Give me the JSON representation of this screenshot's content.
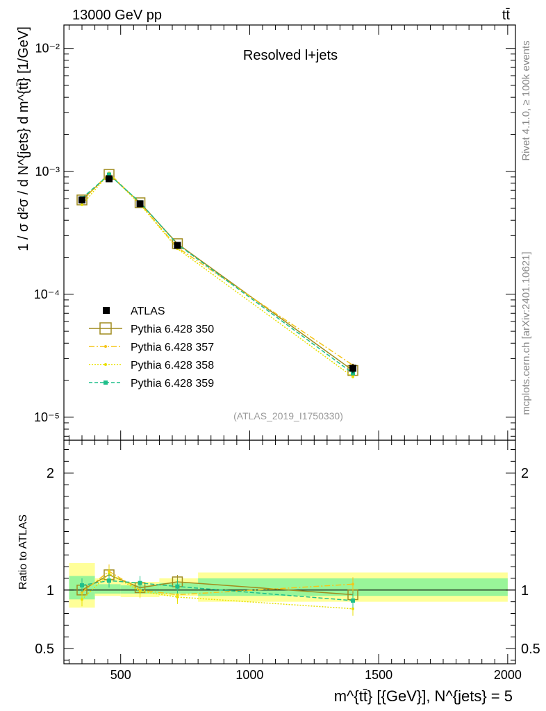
{
  "header": {
    "left": "13000 GeV pp",
    "right": "tt̄",
    "side_top": "Rivet 4.1.0, ≥ 100k events",
    "side_bottom": "mcplots.cern.ch [arXiv:2401.10621]"
  },
  "chart_data": [
    {
      "type": "line",
      "title": "Resolved l+jets",
      "analysis_label": "(ATLAS_2019_I1750330)",
      "ylabel": "1 / σ d²σ / d N^{jets} d m^{tt̄} [1/GeV]",
      "yscale": "log",
      "xlim": [
        280,
        2030
      ],
      "ylim": [
        6.5e-06,
        0.0155
      ],
      "y_tick_labels": [
        "10⁻⁵",
        "10⁻⁴",
        "10⁻³",
        "10⁻²"
      ],
      "y_tick_values": [
        1e-05,
        0.0001,
        0.001,
        0.01
      ],
      "legend_position": "lower-left",
      "data": {
        "name": "ATLAS",
        "x": [
          350,
          455,
          575,
          720,
          1400
        ],
        "y": [
          0.000585,
          0.00087,
          0.000545,
          0.00025,
          2.5e-05
        ],
        "yerr": [
          3e-05,
          4e-05,
          3e-05,
          1.5e-05,
          2.2e-06
        ]
      },
      "series": [
        {
          "name": "Pythia 6.428 350",
          "color": "#a08c1e",
          "style": "solid",
          "marker": "open-square",
          "x": [
            350,
            455,
            575,
            720,
            1400
          ],
          "y": [
            0.000585,
            0.000945,
            0.000555,
            0.000258,
            2.4e-05
          ]
        },
        {
          "name": "Pythia 6.428 357",
          "color": "#f5c518",
          "style": "dashdot",
          "marker": "dot",
          "x": [
            350,
            455,
            575,
            720,
            1400
          ],
          "y": [
            0.00057,
            0.00097,
            0.000545,
            0.00024,
            2.65e-05
          ]
        },
        {
          "name": "Pythia 6.428 358",
          "color": "#e8e000",
          "style": "dotted",
          "marker": "dot",
          "x": [
            350,
            455,
            575,
            720,
            1400
          ],
          "y": [
            0.000535,
            0.000955,
            0.00054,
            0.000235,
            2.13e-05
          ]
        },
        {
          "name": "Pythia 6.428 359",
          "color": "#1fbf8a",
          "style": "dashed",
          "marker": "filled-square",
          "x": [
            350,
            455,
            575,
            720,
            1400
          ],
          "y": [
            0.000605,
            0.00094,
            0.00056,
            0.000255,
            2.28e-05
          ]
        }
      ]
    },
    {
      "type": "line",
      "title": "",
      "ylabel": "Ratio to ATLAS",
      "xlabel": "m^{tt̄} [{GeV}], N^{jets} = 5",
      "xlim": [
        280,
        2030
      ],
      "ylim": [
        0.37,
        2.28
      ],
      "x_ticks": [
        500,
        1000,
        1500,
        2000
      ],
      "x_tick_labels": [
        "500",
        "1000",
        "1500",
        "2000"
      ],
      "y_ticks": [
        0.5,
        1,
        2
      ],
      "y_tick_labels": [
        "0.5",
        "1",
        "2"
      ],
      "bands": [
        {
          "x0": 300,
          "x1": 400,
          "yellow": [
            0.85,
            1.23
          ],
          "green": [
            0.92,
            1.12
          ]
        },
        {
          "x0": 400,
          "x1": 500,
          "yellow": [
            0.95,
            1.1
          ],
          "green": [
            0.97,
            1.05
          ]
        },
        {
          "x0": 500,
          "x1": 650,
          "yellow": [
            0.94,
            1.07
          ],
          "green": [
            0.97,
            1.04
          ]
        },
        {
          "x0": 650,
          "x1": 800,
          "yellow": [
            0.95,
            1.1
          ],
          "green": [
            0.97,
            1.06
          ]
        },
        {
          "x0": 800,
          "x1": 2000,
          "yellow": [
            0.9,
            1.15
          ],
          "green": [
            0.95,
            1.1
          ]
        }
      ],
      "series": [
        {
          "name": "Pythia 6.428 350",
          "color": "#a08c1e",
          "style": "solid",
          "marker": "open-square",
          "x": [
            350,
            455,
            575,
            720,
            1400
          ],
          "y": [
            1.0,
            1.13,
            1.02,
            1.07,
            0.96
          ]
        },
        {
          "name": "Pythia 6.428 357",
          "color": "#f5c518",
          "style": "dashdot",
          "marker": "dot",
          "x": [
            350,
            455,
            575,
            720,
            1400
          ],
          "y": [
            0.98,
            1.16,
            1.0,
            0.96,
            1.05
          ]
        },
        {
          "name": "Pythia 6.428 358",
          "color": "#e8e000",
          "style": "dotted",
          "marker": "dot",
          "x": [
            350,
            455,
            575,
            720,
            1400
          ],
          "y": [
            0.92,
            1.14,
            0.99,
            0.94,
            0.84
          ]
        },
        {
          "name": "Pythia 6.428 359",
          "color": "#1fbf8a",
          "style": "dashed",
          "marker": "filled-square",
          "x": [
            350,
            455,
            575,
            720,
            1400
          ],
          "y": [
            1.04,
            1.08,
            1.06,
            1.03,
            0.91
          ]
        }
      ]
    }
  ]
}
